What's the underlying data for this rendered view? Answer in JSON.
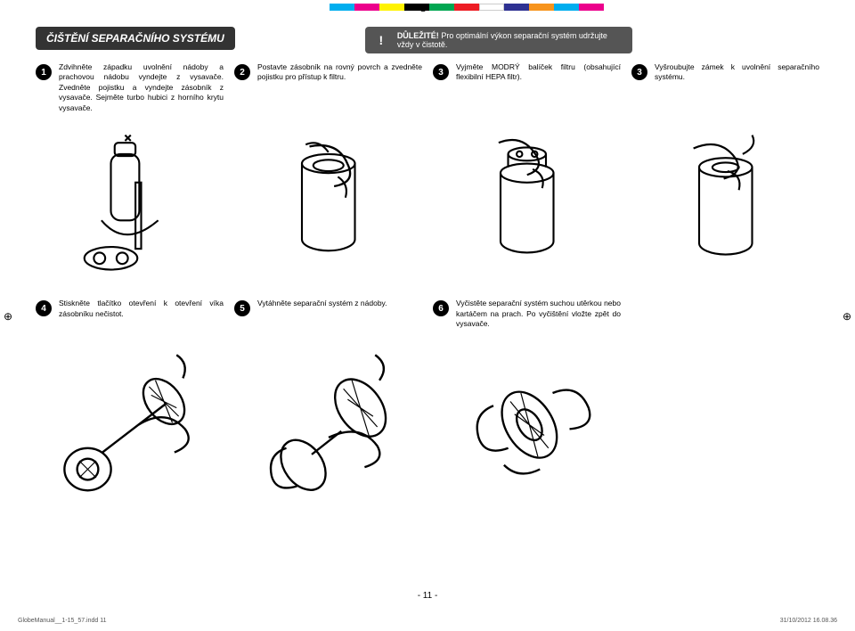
{
  "colorbar": [
    "#00aeef",
    "#ec008c",
    "#fff200",
    "#000000",
    "#00a651",
    "#ed1c24",
    "#ffffff",
    "#2e3192",
    "#f7941d",
    "#00aeef",
    "#ec008c"
  ],
  "title": "ČIŠTĚNÍ SEPARAČNÍHO SYSTÉMU",
  "important": {
    "label": "DŮLEŽITÉ!",
    "text": "Pro optimální výkon separační systém udržujte vždy v čistotě."
  },
  "row1": [
    {
      "n": "1",
      "t": "Zdvihněte západku uvolnění nádoby a prachovou nádobu vyndejte z vysavače. Zvedněte pojistku a vyndejte zásobník z vysavače. Sejměte turbo hubici z horního krytu vysavače."
    },
    {
      "n": "2",
      "t": "Postavte zásobník na rovný povrch a zvedněte pojistku pro přístup k filtru."
    },
    {
      "n": "3",
      "t": "Vyjměte MODRÝ balíček filtru (obsahující flexibilní HEPA filtr)."
    },
    {
      "n": "3",
      "t": "Vyšroubujte zámek k uvolnění separačního systému."
    }
  ],
  "row2": [
    {
      "n": "4",
      "t": "Stiskněte tlačítko otevření k otevření víka zásobníku nečistot."
    },
    {
      "n": "5",
      "t": "Vytáhněte separační systém z nádoby."
    },
    {
      "n": "6",
      "t": "Vyčistěte separační systém suchou utěrkou nebo kartáčem na prach. Po vyčištění vložte zpět do vysavače."
    }
  ],
  "pageNum": "- 11 -",
  "footer": {
    "left": "GlobeManual__1-15_57.indd   11",
    "right": "31/10/2012   16.08.36"
  }
}
